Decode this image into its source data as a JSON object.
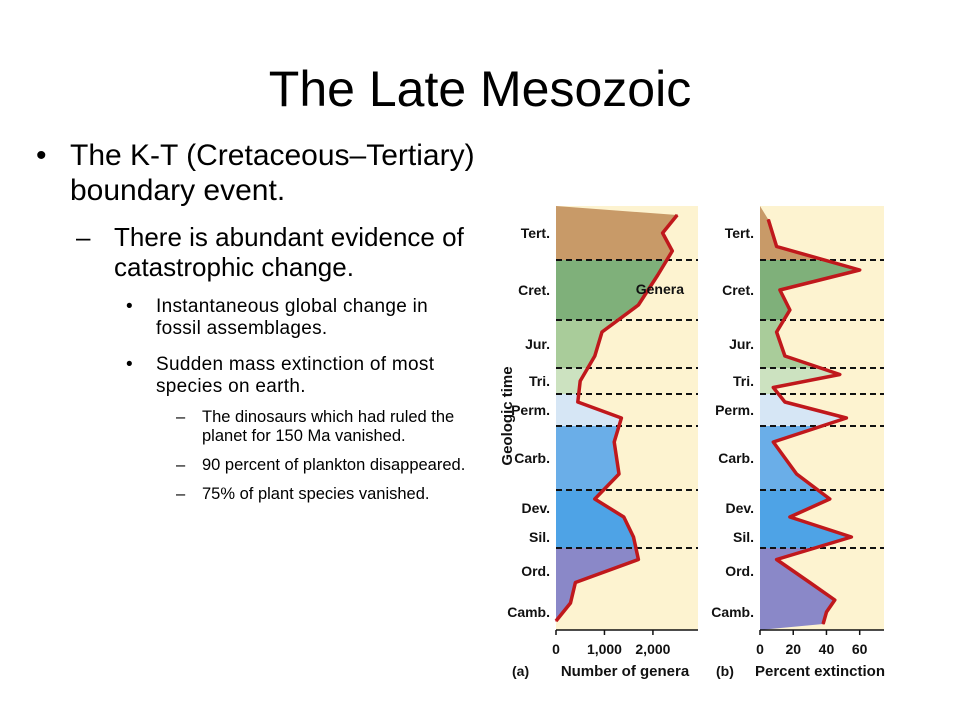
{
  "slide": {
    "title": "The Late Mesozoic",
    "bullets": {
      "l1": "The K-T (Cretaceous–Tertiary) boundary event.",
      "l2": "There is abundant evidence of catastrophic change.",
      "l3": [
        "Instantaneous global change in fossil assemblages.",
        "Sudden mass extinction of most species on earth."
      ],
      "l4": [
        "The dinosaurs which had ruled the planet for 150 Ma vanished.",
        "90 percent of plankton disappeared.",
        "75% of plant species vanished."
      ]
    }
  },
  "figure": {
    "y_axis_title": "Geologic time",
    "periods": [
      "Tert.",
      "Cret.",
      "Jur.",
      "Tri.",
      "Perm.",
      "Carb.",
      "Dev.",
      "Sil.",
      "Ord.",
      "Camb."
    ],
    "colors": {
      "line": "#c0181c",
      "paper": "#fdf3d0",
      "tert": "#c89a68",
      "cret": "#7fb07a",
      "jur": "#a9cc9a",
      "tri": "#cce2c0",
      "perm": "#d6e6f5",
      "carb": "#6aaee8",
      "dev": "#4ea3e6",
      "ord": "#8a88c8"
    }
  },
  "chart_data": [
    {
      "type": "area",
      "panel": "(a)",
      "xlabel": "Number of genera",
      "series_label": "Genera",
      "xticks": [
        "0",
        "1,000",
        "2,000"
      ],
      "xlim": [
        0,
        2600
      ],
      "y": [
        "Tert.",
        "Tert.",
        "Tert.",
        "Cret.",
        "Cret.",
        "Jur.",
        "Jur.",
        "Tri.",
        "Perm.",
        "Perm.",
        "Carb.",
        "Carb.",
        "Dev.",
        "Dev.",
        "Sil.",
        "Ord.",
        "Ord.",
        "Camb.",
        "Camb."
      ],
      "x": [
        2500,
        2200,
        2400,
        2100,
        1700,
        950,
        800,
        500,
        450,
        1350,
        1200,
        1300,
        800,
        1400,
        1600,
        1700,
        400,
        300,
        0
      ]
    },
    {
      "type": "line",
      "panel": "(b)",
      "xlabel": "Percent extinction",
      "xticks": [
        "0",
        "20",
        "40",
        "60"
      ],
      "xlim": [
        0,
        65
      ],
      "y": [
        "Tert.",
        "Tert.",
        "Cret.",
        "Cret.",
        "Cret.",
        "Jur.",
        "Jur.",
        "Tri.",
        "Tri.",
        "Perm.",
        "Perm.",
        "Carb.",
        "Carb.",
        "Dev.",
        "Dev.",
        "Sil.",
        "Ord.",
        "Ord.",
        "Camb.",
        "Camb.",
        "Camb."
      ],
      "x": [
        5,
        10,
        60,
        12,
        18,
        10,
        15,
        48,
        8,
        15,
        52,
        8,
        22,
        42,
        18,
        55,
        10,
        30,
        45,
        40,
        38
      ]
    }
  ]
}
